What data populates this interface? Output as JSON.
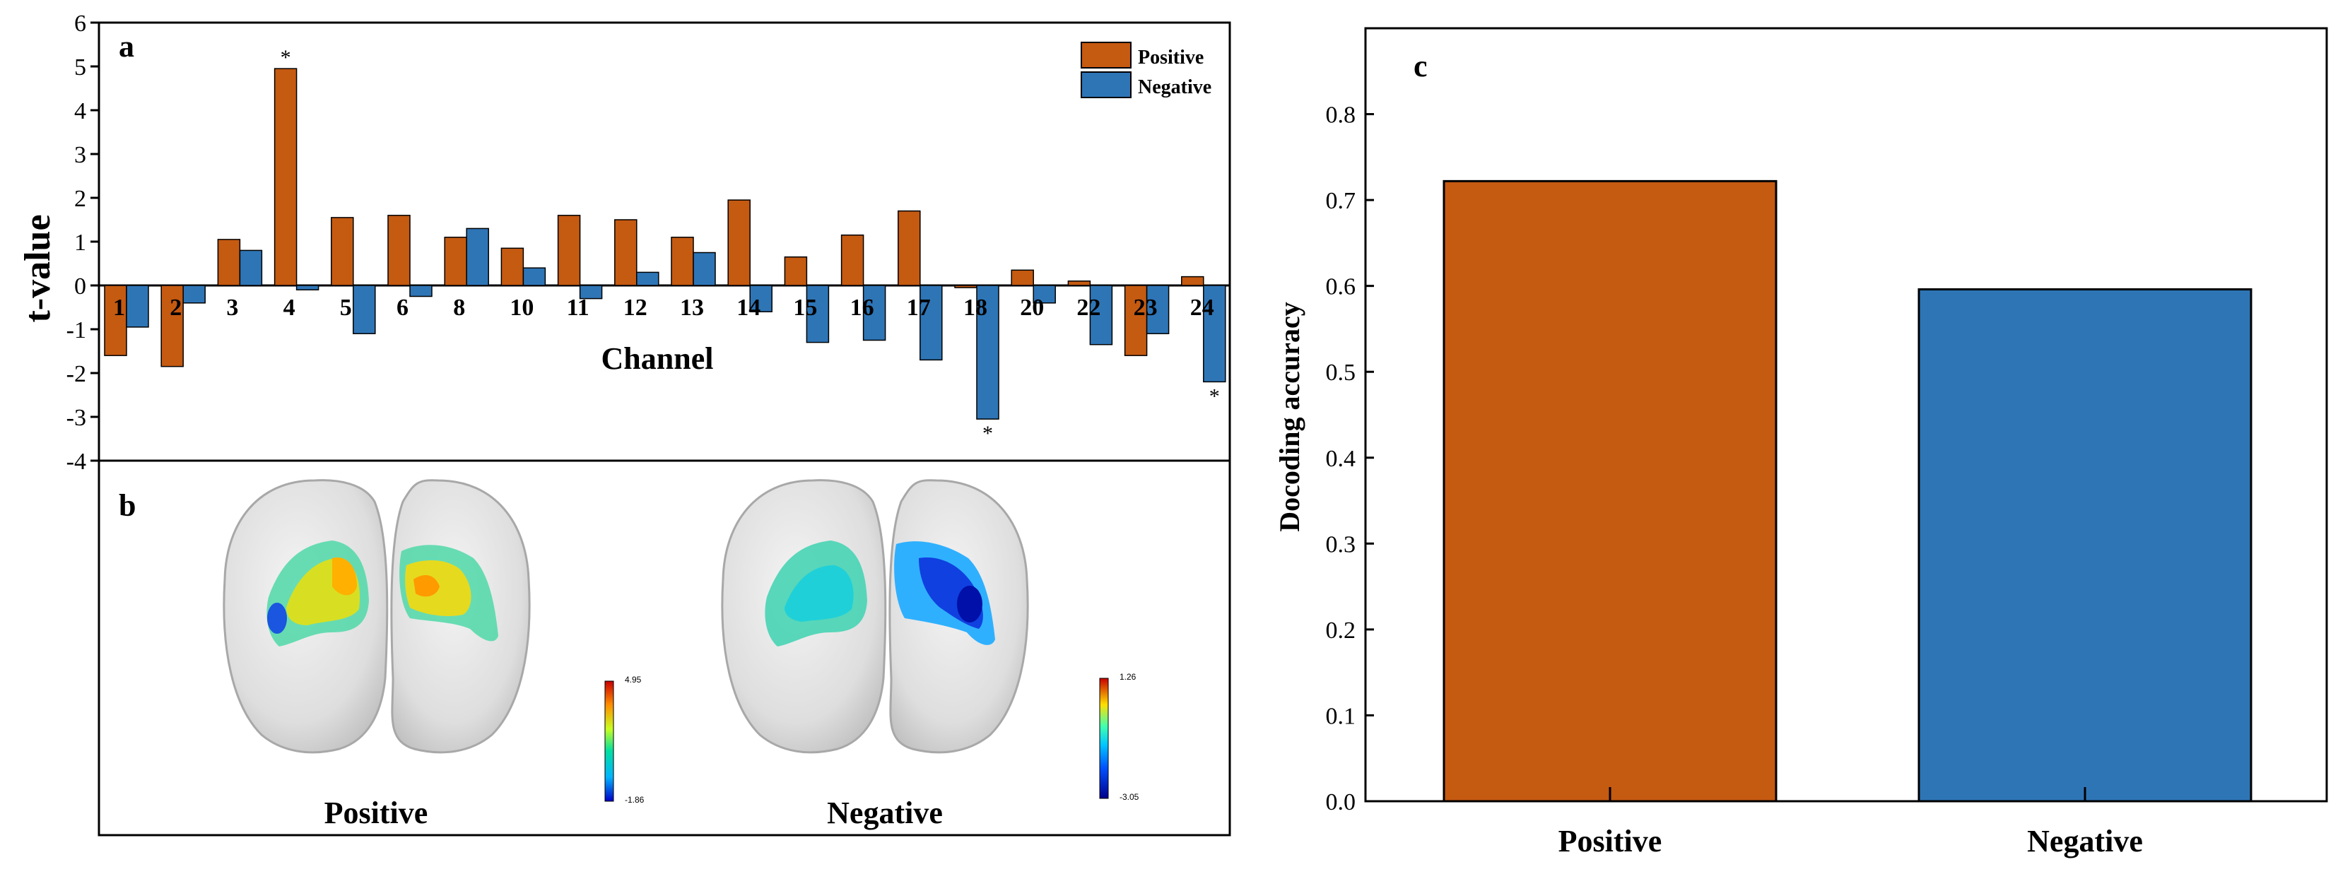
{
  "colors": {
    "positive": "#C55A11",
    "negative": "#2E75B6",
    "axis": "#000000"
  },
  "panel_labels": {
    "a": "a",
    "b": "b",
    "c": "c"
  },
  "chart_data": [
    {
      "id": "a",
      "type": "bar",
      "xlabel": "Channel",
      "ylabel": "t-value",
      "ylim": [
        -4,
        6
      ],
      "yticks": [
        "6",
        "5",
        "4",
        "3",
        "2",
        "1",
        "0",
        "-1",
        "-2",
        "-3",
        "-4"
      ],
      "ytick_values": [
        6,
        5,
        4,
        3,
        2,
        1,
        0,
        -1,
        -2,
        -3,
        -4
      ],
      "categories": [
        "1",
        "2",
        "3",
        "4",
        "5",
        "6",
        "8",
        "10",
        "11",
        "12",
        "13",
        "14",
        "15",
        "16",
        "17",
        "18",
        "20",
        "22",
        "23",
        "24"
      ],
      "series": [
        {
          "name": "Positive",
          "values": [
            -1.6,
            -1.85,
            1.05,
            4.95,
            1.55,
            1.6,
            1.1,
            0.85,
            1.6,
            1.5,
            1.1,
            1.95,
            0.65,
            1.15,
            1.7,
            -0.05,
            0.35,
            0.1,
            -1.6,
            0.2
          ]
        },
        {
          "name": "Negative",
          "values": [
            -0.95,
            -0.4,
            0.8,
            -0.1,
            -1.1,
            -0.25,
            1.3,
            0.4,
            -0.3,
            0.3,
            0.75,
            -0.6,
            -1.3,
            -1.25,
            -1.7,
            -3.05,
            -0.4,
            -1.35,
            -1.1,
            -2.2
          ]
        }
      ],
      "significance": [
        {
          "category": "4",
          "series": "Positive",
          "mark": "*"
        },
        {
          "category": "18",
          "series": "Negative",
          "mark": "*"
        },
        {
          "category": "24",
          "series": "Negative",
          "mark": "*"
        }
      ],
      "legend": {
        "position": "top-right",
        "entries": [
          "Positive",
          "Negative"
        ]
      }
    },
    {
      "id": "b",
      "type": "brain-map",
      "maps": [
        {
          "name": "Positive",
          "colorbar_max": "4.95",
          "colorbar_min": "-1.86"
        },
        {
          "name": "Negative",
          "colorbar_max": "1.26",
          "colorbar_min": "-3.05"
        }
      ]
    },
    {
      "id": "c",
      "type": "bar",
      "xlabel": "",
      "ylabel": "Docoding accuracy",
      "ylim": [
        0,
        0.9
      ],
      "yticks": [
        "0.8",
        "0.7",
        "0.6",
        "0.5",
        "0.4",
        "0.3",
        "0.2",
        "0.1",
        "0.0"
      ],
      "ytick_values": [
        0.8,
        0.7,
        0.6,
        0.5,
        0.4,
        0.3,
        0.2,
        0.1,
        0.0
      ],
      "categories": [
        "Positive",
        "Negative"
      ],
      "values": [
        0.722,
        0.596
      ]
    }
  ]
}
